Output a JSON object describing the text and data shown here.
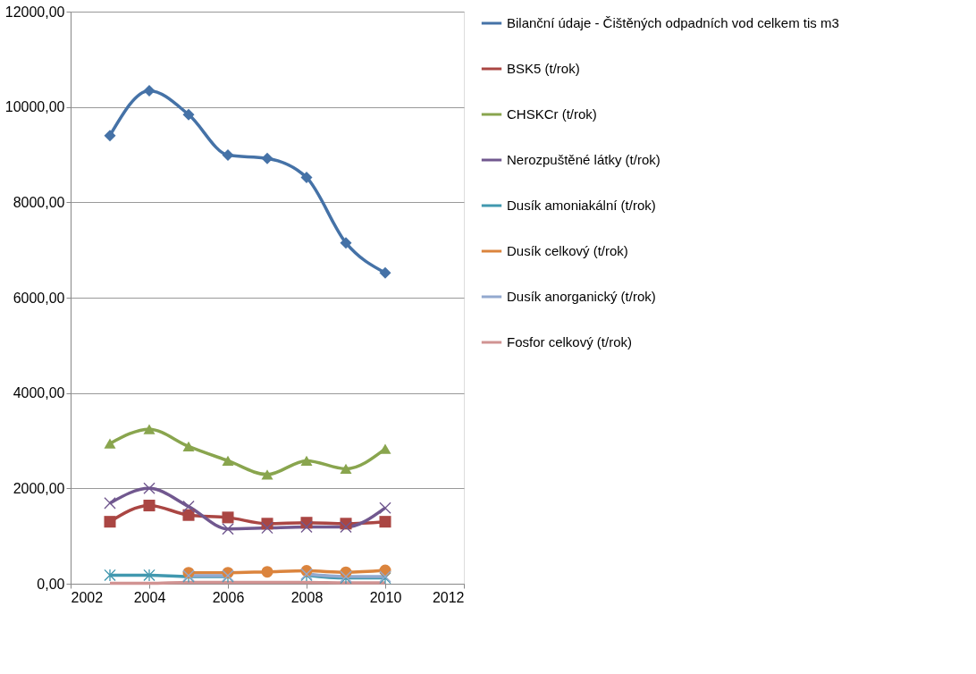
{
  "chart_data": {
    "type": "line",
    "x": [
      2003,
      2004,
      2005,
      2006,
      2007,
      2008,
      2009,
      2010
    ],
    "xlim": [
      2002,
      2012
    ],
    "xticks": [
      2002,
      2004,
      2006,
      2008,
      2010,
      2012
    ],
    "ylim": [
      0,
      12000
    ],
    "yticks": [
      {
        "value": 0,
        "label": "0,00"
      },
      {
        "value": 2000,
        "label": "2000,00"
      },
      {
        "value": 4000,
        "label": "4000,00"
      },
      {
        "value": 6000,
        "label": "6000,00"
      },
      {
        "value": 8000,
        "label": "8000,00"
      },
      {
        "value": 10000,
        "label": "10000,00"
      },
      {
        "value": 12000,
        "label": "12000,00"
      }
    ],
    "grid": "y",
    "legend": "right",
    "series": [
      {
        "name": "Bilanční údaje - Čištěných odpadních vod celkem  tis m3",
        "color": "#4572a7",
        "marker": "diamond",
        "values": [
          9400,
          10340,
          9840,
          8990,
          8920,
          8520,
          7150,
          6520
        ]
      },
      {
        "name": "BSK5 (t/rok)",
        "color": "#aa4643",
        "marker": "square",
        "values": [
          1300,
          1640,
          1440,
          1390,
          1260,
          1280,
          1260,
          1300
        ]
      },
      {
        "name": "CHSKCr (t/rok)",
        "color": "#89a54e",
        "marker": "triangle",
        "values": [
          2940,
          3240,
          2880,
          2580,
          2290,
          2580,
          2410,
          2830
        ]
      },
      {
        "name": "Nerozpuštěné látky (t/rok)",
        "color": "#71588f",
        "marker": "cross",
        "values": [
          1690,
          2000,
          1620,
          1150,
          1170,
          1190,
          1190,
          1590
        ]
      },
      {
        "name": " Dusík amoniakální (t/rok)",
        "color": "#4198af",
        "marker": "star",
        "values": [
          180,
          180,
          150,
          150,
          null,
          180,
          120,
          120
        ]
      },
      {
        "name": "Dusík celkový (t/rok)",
        "color": "#db843d",
        "marker": "circle",
        "values": [
          null,
          null,
          230,
          230,
          250,
          270,
          240,
          280
        ]
      },
      {
        "name": "Dusík anorganický (t/rok)",
        "color": "#93a9cf",
        "marker": "cross",
        "values": [
          null,
          null,
          170,
          170,
          null,
          200,
          150,
          150
        ]
      },
      {
        "name": "Fosfor celkový (t/rok)",
        "color": "#d19392",
        "marker": "none",
        "values": [
          10,
          10,
          30,
          30,
          30,
          30,
          20,
          20
        ]
      }
    ]
  }
}
